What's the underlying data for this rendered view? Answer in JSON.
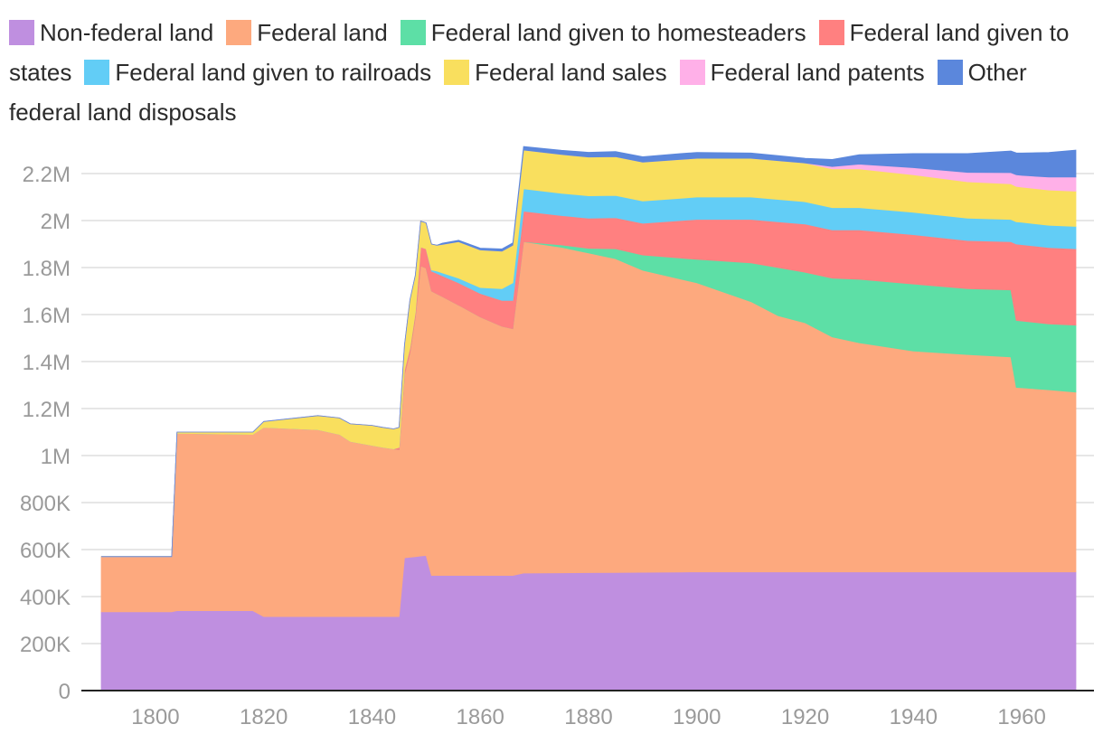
{
  "chart_data": {
    "type": "area",
    "title": "",
    "xlabel": "",
    "ylabel": "",
    "xlim": [
      1787,
      1974
    ],
    "ylim": [
      0,
      2300000
    ],
    "x_ticks": [
      1800,
      1820,
      1840,
      1860,
      1880,
      1900,
      1920,
      1940,
      1960
    ],
    "y_ticks": [
      0,
      200000,
      400000,
      600000,
      800000,
      1000000,
      1200000,
      1400000,
      1600000,
      1800000,
      2000000,
      2200000
    ],
    "y_tick_labels": [
      "0",
      "200K",
      "400K",
      "600K",
      "800K",
      "1M",
      "1.2M",
      "1.4M",
      "1.6M",
      "1.8M",
      "2M",
      "2.2M"
    ],
    "stacked": true,
    "series": [
      {
        "name": "Non-federal land",
        "color": "#bf8fe0",
        "points": [
          [
            1790,
            335000
          ],
          [
            1803,
            335000
          ],
          [
            1804,
            340000
          ],
          [
            1818,
            340000
          ],
          [
            1820,
            315000
          ],
          [
            1845,
            315000
          ],
          [
            1846,
            565000
          ],
          [
            1850,
            575000
          ],
          [
            1851,
            490000
          ],
          [
            1866,
            490000
          ],
          [
            1868,
            500000
          ],
          [
            1900,
            505000
          ],
          [
            1970,
            505000
          ]
        ]
      },
      {
        "name": "Federal land",
        "color": "#fda97e",
        "points": [
          [
            1790,
            235000
          ],
          [
            1803,
            235000
          ],
          [
            1804,
            755000
          ],
          [
            1818,
            750000
          ],
          [
            1820,
            805000
          ],
          [
            1830,
            795000
          ],
          [
            1834,
            775000
          ],
          [
            1836,
            745000
          ],
          [
            1842,
            720000
          ],
          [
            1845,
            710000
          ],
          [
            1846,
            780000
          ],
          [
            1847,
            870000
          ],
          [
            1848,
            1020000
          ],
          [
            1849,
            1235000
          ],
          [
            1851,
            1210000
          ],
          [
            1856,
            1150000
          ],
          [
            1860,
            1100000
          ],
          [
            1864,
            1060000
          ],
          [
            1866,
            1050000
          ],
          [
            1868,
            1410000
          ],
          [
            1875,
            1385000
          ],
          [
            1885,
            1335000
          ],
          [
            1890,
            1285000
          ],
          [
            1900,
            1230000
          ],
          [
            1910,
            1150000
          ],
          [
            1915,
            1090000
          ],
          [
            1920,
            1060000
          ],
          [
            1925,
            1000000
          ],
          [
            1930,
            975000
          ],
          [
            1940,
            940000
          ],
          [
            1950,
            925000
          ],
          [
            1958,
            915000
          ],
          [
            1959,
            785000
          ],
          [
            1965,
            775000
          ],
          [
            1970,
            765000
          ]
        ]
      },
      {
        "name": "Federal land given to homesteaders",
        "color": "#5ddfa6",
        "points": [
          [
            1790,
            0
          ],
          [
            1866,
            0
          ],
          [
            1868,
            0
          ],
          [
            1875,
            10000
          ],
          [
            1880,
            20000
          ],
          [
            1890,
            65000
          ],
          [
            1900,
            100000
          ],
          [
            1910,
            165000
          ],
          [
            1915,
            205000
          ],
          [
            1920,
            215000
          ],
          [
            1925,
            250000
          ],
          [
            1930,
            270000
          ],
          [
            1940,
            285000
          ],
          [
            1950,
            280000
          ],
          [
            1958,
            285000
          ],
          [
            1959,
            285000
          ],
          [
            1965,
            280000
          ],
          [
            1970,
            285000
          ]
        ]
      },
      {
        "name": "Federal land given to states",
        "color": "#ff8080",
        "points": [
          [
            1790,
            0
          ],
          [
            1844,
            0
          ],
          [
            1846,
            20000
          ],
          [
            1848,
            20000
          ],
          [
            1849,
            80000
          ],
          [
            1851,
            85000
          ],
          [
            1856,
            95000
          ],
          [
            1860,
            100000
          ],
          [
            1864,
            110000
          ],
          [
            1866,
            120000
          ],
          [
            1868,
            130000
          ],
          [
            1875,
            125000
          ],
          [
            1890,
            135000
          ],
          [
            1900,
            170000
          ],
          [
            1910,
            185000
          ],
          [
            1920,
            205000
          ],
          [
            1925,
            205000
          ],
          [
            1930,
            210000
          ],
          [
            1940,
            210000
          ],
          [
            1950,
            205000
          ],
          [
            1958,
            205000
          ],
          [
            1959,
            325000
          ],
          [
            1965,
            325000
          ],
          [
            1970,
            325000
          ]
        ]
      },
      {
        "name": "Federal land given to railroads",
        "color": "#62cdf6",
        "points": [
          [
            1790,
            0
          ],
          [
            1850,
            0
          ],
          [
            1852,
            10000
          ],
          [
            1856,
            20000
          ],
          [
            1860,
            25000
          ],
          [
            1864,
            50000
          ],
          [
            1866,
            75000
          ],
          [
            1868,
            95000
          ],
          [
            1880,
            95000
          ],
          [
            1900,
            95000
          ],
          [
            1920,
            95000
          ],
          [
            1930,
            95000
          ],
          [
            1940,
            95000
          ],
          [
            1950,
            95000
          ],
          [
            1960,
            95000
          ],
          [
            1970,
            95000
          ]
        ]
      },
      {
        "name": "Federal land sales",
        "color": "#f9df5e",
        "points": [
          [
            1790,
            0
          ],
          [
            1803,
            0
          ],
          [
            1804,
            5000
          ],
          [
            1818,
            10000
          ],
          [
            1820,
            25000
          ],
          [
            1830,
            60000
          ],
          [
            1840,
            85000
          ],
          [
            1845,
            85000
          ],
          [
            1846,
            105000
          ],
          [
            1847,
            205000
          ],
          [
            1849,
            110000
          ],
          [
            1852,
            110000
          ],
          [
            1856,
            155000
          ],
          [
            1860,
            160000
          ],
          [
            1866,
            160000
          ],
          [
            1868,
            165000
          ],
          [
            1880,
            165000
          ],
          [
            1900,
            165000
          ],
          [
            1910,
            165000
          ],
          [
            1920,
            165000
          ],
          [
            1930,
            165000
          ],
          [
            1940,
            160000
          ],
          [
            1950,
            155000
          ],
          [
            1960,
            150000
          ],
          [
            1970,
            150000
          ]
        ]
      },
      {
        "name": "Federal land patents",
        "color": "#ffb0e8",
        "points": [
          [
            1790,
            0
          ],
          [
            1920,
            0
          ],
          [
            1925,
            10000
          ],
          [
            1930,
            20000
          ],
          [
            1940,
            30000
          ],
          [
            1950,
            40000
          ],
          [
            1960,
            50000
          ],
          [
            1970,
            60000
          ]
        ]
      },
      {
        "name": "Other federal land disposals",
        "color": "#5b87dc",
        "points": [
          [
            1790,
            0
          ],
          [
            1852,
            0
          ],
          [
            1853,
            5000
          ],
          [
            1866,
            10000
          ],
          [
            1868,
            15000
          ],
          [
            1880,
            20000
          ],
          [
            1897,
            25000
          ],
          [
            1900,
            25000
          ],
          [
            1920,
            20000
          ],
          [
            1930,
            40000
          ],
          [
            1940,
            60000
          ],
          [
            1950,
            80000
          ],
          [
            1960,
            95000
          ],
          [
            1970,
            115000
          ]
        ]
      }
    ]
  }
}
